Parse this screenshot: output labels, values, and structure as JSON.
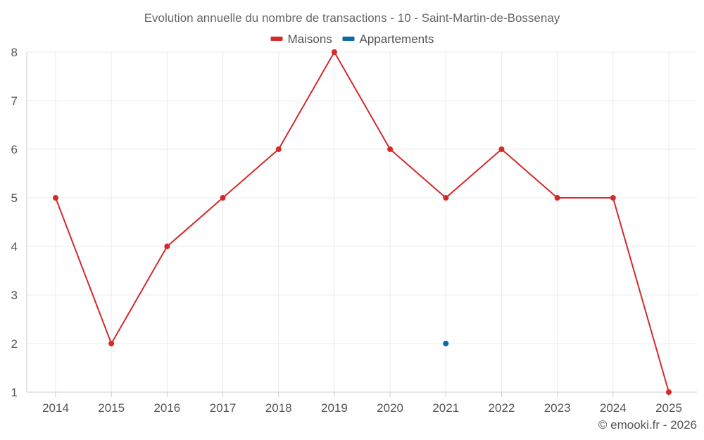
{
  "chart_data": {
    "type": "line",
    "title": "Evolution annuelle du nombre de transactions - 10 - Saint-Martin-de-Bossenay",
    "categories": [
      "2014",
      "2015",
      "2016",
      "2017",
      "2018",
      "2019",
      "2020",
      "2021",
      "2022",
      "2023",
      "2024",
      "2025"
    ],
    "ylim": [
      1,
      8
    ],
    "yticks": [
      "1",
      "2",
      "3",
      "4",
      "5",
      "6",
      "7",
      "8"
    ],
    "grid": true,
    "legend_position": "top-center",
    "series": [
      {
        "name": "Maisons",
        "color": "#d42a2a",
        "values": [
          5,
          2,
          4,
          5,
          6,
          8,
          6,
          5,
          6,
          5,
          5,
          1
        ]
      },
      {
        "name": "Appartements",
        "color": "#0b6aa3",
        "values": [
          null,
          null,
          null,
          null,
          null,
          null,
          null,
          2,
          null,
          null,
          null,
          null
        ]
      }
    ],
    "credit": "© emooki.fr - 2026"
  }
}
